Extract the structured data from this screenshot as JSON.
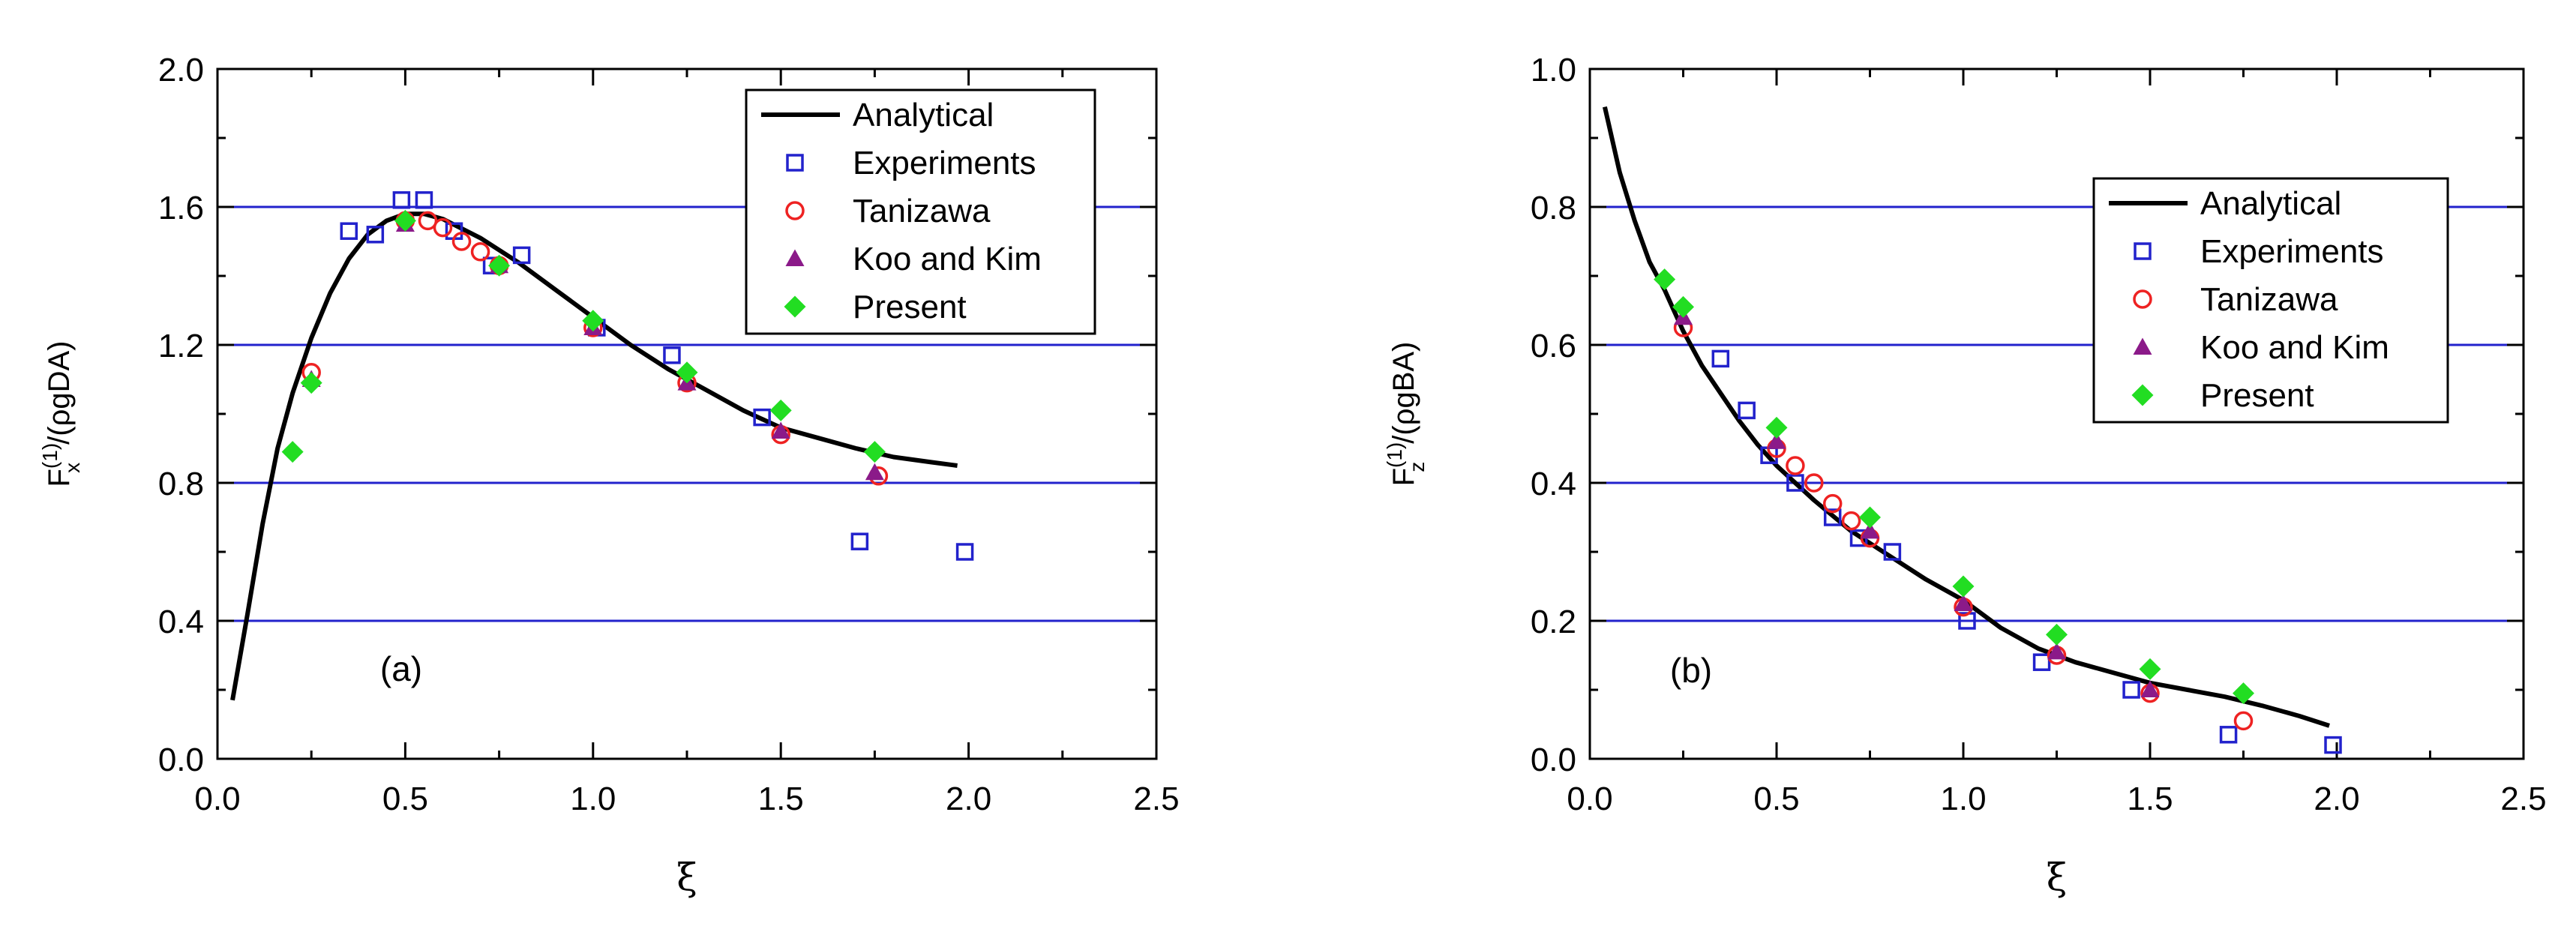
{
  "chart_data": [
    {
      "type": "scatter",
      "panel": "(a)",
      "annotation": "(a)",
      "xlabel": "ξ",
      "ylabel": {
        "base": "F",
        "sup": "(1)",
        "sub": "x",
        "rest": "/(ρgDA)"
      },
      "xlim": [
        0.0,
        2.5
      ],
      "ylim": [
        0.0,
        2.0
      ],
      "xticks": [
        0.0,
        0.5,
        1.0,
        1.5,
        2.0,
        2.5
      ],
      "yticks": [
        0.0,
        0.4,
        0.8,
        1.2,
        1.6,
        2.0
      ],
      "xtick_labels": [
        "0.0",
        "0.5",
        "1.0",
        "1.5",
        "2.0",
        "2.5"
      ],
      "ytick_labels": [
        "0.0",
        "0.4",
        "0.8",
        "1.2",
        "1.6",
        "2.0"
      ],
      "gridlines_y": [
        0.4,
        0.8,
        1.2,
        1.6
      ],
      "legend_position": "top-right",
      "series": [
        {
          "name": "Analytical",
          "style": "line",
          "color": "#000000",
          "x": [
            0.04,
            0.08,
            0.12,
            0.16,
            0.2,
            0.25,
            0.3,
            0.35,
            0.4,
            0.45,
            0.5,
            0.55,
            0.6,
            0.7,
            0.8,
            0.9,
            1.0,
            1.1,
            1.2,
            1.3,
            1.4,
            1.5,
            1.6,
            1.7,
            1.8,
            1.9,
            1.97
          ],
          "y": [
            0.17,
            0.42,
            0.68,
            0.9,
            1.06,
            1.22,
            1.35,
            1.45,
            1.52,
            1.56,
            1.58,
            1.58,
            1.565,
            1.51,
            1.44,
            1.36,
            1.28,
            1.2,
            1.13,
            1.07,
            1.01,
            0.96,
            0.93,
            0.9,
            0.875,
            0.86,
            0.85
          ]
        },
        {
          "name": "Experiments",
          "style": "open-square",
          "color": "#2222cc",
          "x": [
            0.35,
            0.42,
            0.49,
            0.55,
            0.63,
            0.73,
            0.81,
            1.01,
            1.21,
            1.45,
            1.71,
            1.99
          ],
          "y": [
            1.53,
            1.52,
            1.62,
            1.62,
            1.53,
            1.43,
            1.46,
            1.25,
            1.17,
            0.99,
            0.63,
            0.6
          ]
        },
        {
          "name": "Tanizawa",
          "style": "open-circle",
          "color": "#ee2222",
          "x": [
            0.25,
            0.5,
            0.56,
            0.6,
            0.65,
            0.7,
            0.75,
            1.0,
            1.25,
            1.5,
            1.76
          ],
          "y": [
            1.12,
            1.56,
            1.56,
            1.54,
            1.5,
            1.47,
            1.43,
            1.25,
            1.09,
            0.94,
            0.82
          ]
        },
        {
          "name": "Koo and Kim",
          "style": "filled-triangle",
          "color": "#8b1a89",
          "x": [
            0.25,
            0.5,
            0.75,
            1.0,
            1.25,
            1.5,
            1.75
          ],
          "y": [
            1.1,
            1.55,
            1.43,
            1.25,
            1.09,
            0.95,
            0.83
          ]
        },
        {
          "name": "Present",
          "style": "filled-diamond",
          "color": "#22dd22",
          "x": [
            0.2,
            0.25,
            0.5,
            0.75,
            1.0,
            1.25,
            1.5,
            1.75
          ],
          "y": [
            0.89,
            1.09,
            1.56,
            1.43,
            1.27,
            1.12,
            1.01,
            0.89
          ]
        }
      ]
    },
    {
      "type": "scatter",
      "panel": "(b)",
      "annotation": "(b)",
      "xlabel": "ξ",
      "ylabel": {
        "base": "F",
        "sup": "(1)",
        "sub": "z",
        "rest": "/(ρgBA)"
      },
      "xlim": [
        0.0,
        2.5
      ],
      "ylim": [
        0.0,
        1.0
      ],
      "xticks": [
        0.0,
        0.5,
        1.0,
        1.5,
        2.0,
        2.5
      ],
      "yticks": [
        0.0,
        0.2,
        0.4,
        0.6,
        0.8,
        1.0
      ],
      "xtick_labels": [
        "0.0",
        "0.5",
        "1.0",
        "1.5",
        "2.0",
        "2.5"
      ],
      "ytick_labels": [
        "0.0",
        "0.2",
        "0.4",
        "0.6",
        "0.8",
        "1.0"
      ],
      "gridlines_y": [
        0.2,
        0.4,
        0.6,
        0.8
      ],
      "legend_position": "center-right",
      "series": [
        {
          "name": "Analytical",
          "style": "line",
          "color": "#000000",
          "x": [
            0.04,
            0.08,
            0.12,
            0.16,
            0.2,
            0.25,
            0.3,
            0.35,
            0.4,
            0.45,
            0.5,
            0.55,
            0.6,
            0.7,
            0.8,
            0.9,
            1.0,
            1.1,
            1.2,
            1.3,
            1.4,
            1.5,
            1.6,
            1.7,
            1.8,
            1.9,
            1.98
          ],
          "y": [
            0.945,
            0.85,
            0.78,
            0.72,
            0.68,
            0.62,
            0.57,
            0.53,
            0.49,
            0.455,
            0.425,
            0.4,
            0.375,
            0.33,
            0.295,
            0.26,
            0.23,
            0.19,
            0.16,
            0.14,
            0.125,
            0.11,
            0.1,
            0.09,
            0.077,
            0.062,
            0.048
          ]
        },
        {
          "name": "Experiments",
          "style": "open-square",
          "color": "#2222cc",
          "x": [
            0.35,
            0.42,
            0.48,
            0.55,
            0.65,
            0.72,
            0.81,
            1.01,
            1.21,
            1.45,
            1.71,
            1.99
          ],
          "y": [
            0.58,
            0.505,
            0.44,
            0.4,
            0.35,
            0.32,
            0.3,
            0.2,
            0.14,
            0.1,
            0.035,
            0.02
          ]
        },
        {
          "name": "Tanizawa",
          "style": "open-circle",
          "color": "#ee2222",
          "x": [
            0.25,
            0.5,
            0.55,
            0.6,
            0.65,
            0.7,
            0.75,
            1.0,
            1.25,
            1.5,
            1.75
          ],
          "y": [
            0.625,
            0.45,
            0.425,
            0.4,
            0.37,
            0.345,
            0.32,
            0.22,
            0.15,
            0.095,
            0.055
          ]
        },
        {
          "name": "Koo and Kim",
          "style": "filled-triangle",
          "color": "#8b1a89",
          "x": [
            0.25,
            0.5,
            0.75,
            1.0,
            1.25,
            1.5
          ],
          "y": [
            0.64,
            0.46,
            0.33,
            0.225,
            0.155,
            0.1
          ]
        },
        {
          "name": "Present",
          "style": "filled-diamond",
          "color": "#22dd22",
          "x": [
            0.2,
            0.25,
            0.5,
            0.75,
            1.0,
            1.25,
            1.5,
            1.75
          ],
          "y": [
            0.695,
            0.655,
            0.48,
            0.35,
            0.25,
            0.18,
            0.13,
            0.095
          ]
        }
      ]
    }
  ]
}
